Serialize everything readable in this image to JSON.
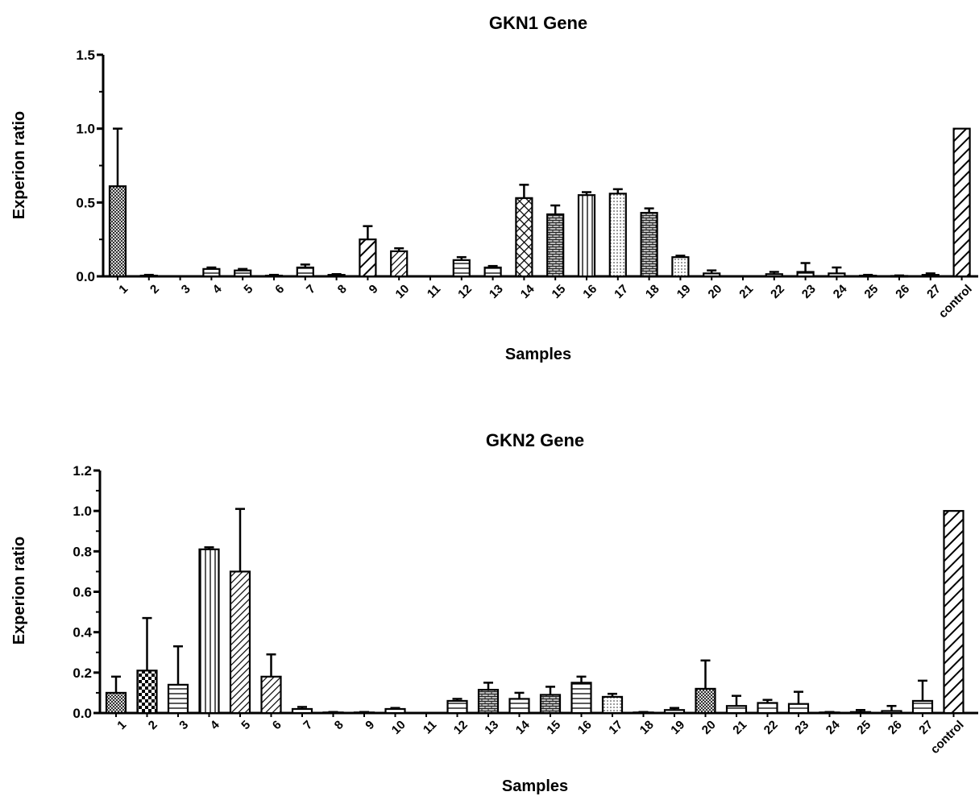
{
  "chart_data": [
    {
      "type": "bar",
      "title": "GKN1 Gene",
      "xlabel": "Samples",
      "ylabel": "Experion ratio",
      "ylim": [
        0,
        1.5
      ],
      "yticks": [
        "0.0",
        "0.5",
        "1.0",
        "1.5"
      ],
      "categories": [
        "1",
        "2",
        "3",
        "4",
        "5",
        "6",
        "7",
        "8",
        "9",
        "10",
        "11",
        "12",
        "13",
        "14",
        "15",
        "16",
        "17",
        "18",
        "19",
        "20",
        "21",
        "22",
        "23",
        "24",
        "25",
        "26",
        "27",
        "control"
      ],
      "values": [
        0.61,
        0.005,
        0.0,
        0.05,
        0.04,
        0.005,
        0.06,
        0.01,
        0.25,
        0.17,
        0.0,
        0.11,
        0.06,
        0.53,
        0.42,
        0.55,
        0.56,
        0.43,
        0.13,
        0.02,
        0.0,
        0.015,
        0.03,
        0.02,
        0.005,
        0.003,
        0.01,
        1.0
      ],
      "errors": [
        0.39,
        0.005,
        0.0,
        0.01,
        0.01,
        0.005,
        0.02,
        0.005,
        0.09,
        0.02,
        0.0,
        0.02,
        0.01,
        0.09,
        0.06,
        0.02,
        0.03,
        0.03,
        0.01,
        0.02,
        0.0,
        0.015,
        0.06,
        0.04,
        0.005,
        0.003,
        0.01,
        0.0
      ],
      "patterns": [
        "cross",
        "dots",
        "dots",
        "hline",
        "hline",
        "vline",
        "hline",
        "hline",
        "diag-wide",
        "diag",
        "dots",
        "hline",
        "hline",
        "xhatch",
        "brick",
        "vline",
        "dots",
        "brick",
        "dots",
        "hline",
        "dots",
        "hline",
        "hline",
        "hline",
        "hline",
        "hline",
        "hline",
        "diag-wide"
      ]
    },
    {
      "type": "bar",
      "title": "GKN2 Gene",
      "xlabel": "Samples",
      "ylabel": "Experion ratio",
      "ylim": [
        0,
        1.2
      ],
      "yticks": [
        "0.0",
        "0.2",
        "0.4",
        "0.6",
        "0.8",
        "1.0",
        "1.2"
      ],
      "categories": [
        "1",
        "2",
        "3",
        "4",
        "5",
        "6",
        "7",
        "8",
        "9",
        "10",
        "11",
        "12",
        "13",
        "14",
        "15",
        "16",
        "17",
        "18",
        "19",
        "20",
        "21",
        "22",
        "23",
        "24",
        "25",
        "26",
        "27",
        "control"
      ],
      "values": [
        0.1,
        0.21,
        0.14,
        0.81,
        0.7,
        0.18,
        0.02,
        0.003,
        0.003,
        0.02,
        0.0,
        0.06,
        0.115,
        0.07,
        0.09,
        0.15,
        0.08,
        0.003,
        0.015,
        0.12,
        0.035,
        0.05,
        0.045,
        0.003,
        0.005,
        0.01,
        0.06,
        1.0
      ],
      "errors": [
        0.08,
        0.26,
        0.19,
        0.01,
        0.31,
        0.11,
        0.01,
        0.002,
        0.002,
        0.005,
        0.0,
        0.01,
        0.035,
        0.03,
        0.04,
        0.03,
        0.015,
        0.002,
        0.01,
        0.14,
        0.05,
        0.015,
        0.06,
        0.002,
        0.01,
        0.025,
        0.1,
        0.0
      ],
      "patterns": [
        "cross",
        "checker",
        "hline",
        "vline",
        "diag",
        "diag",
        "hline",
        "hline",
        "hline",
        "hline",
        "dots",
        "hline",
        "brick",
        "hline",
        "brick",
        "hline",
        "dots",
        "hline",
        "hline",
        "cross",
        "hline",
        "hline",
        "hline",
        "hline",
        "hline",
        "hline",
        "hline",
        "diag-wide"
      ]
    }
  ]
}
